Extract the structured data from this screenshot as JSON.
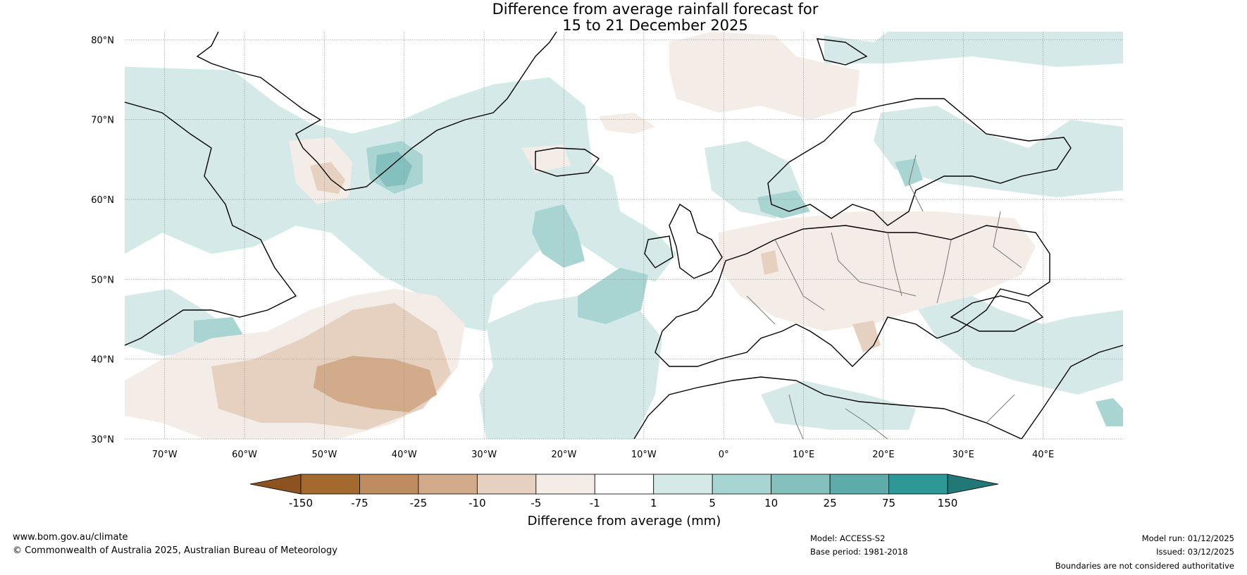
{
  "title": {
    "line1": "Difference from average rainfall forecast for",
    "line2": "15 to 21 December 2025"
  },
  "map": {
    "lat_labels": [
      "80°N",
      "70°N",
      "60°N",
      "50°N",
      "40°N",
      "30°N"
    ],
    "lon_labels": [
      "70°W",
      "60°W",
      "50°W",
      "40°W",
      "30°W",
      "20°W",
      "10°W",
      "0°",
      "10°E",
      "20°E",
      "30°E",
      "40°E"
    ],
    "extent": {
      "lon_min": -75,
      "lon_max": 50,
      "lat_min": 30,
      "lat_max": 81
    }
  },
  "colorbar": {
    "ticks": [
      "-150",
      "-75",
      "-25",
      "-10",
      "-5",
      "-1",
      "1",
      "5",
      "10",
      "25",
      "75",
      "150"
    ],
    "colors": [
      "#a4692f",
      "#bf8c60",
      "#d2ab8b",
      "#e6d0bf",
      "#f4ece6",
      "#ffffff",
      "#d4e9e8",
      "#a8d4d2",
      "#84c0be",
      "#5eacaa",
      "#2e9896"
    ],
    "low_extend_color": "#8c5320",
    "high_extend_color": "#217876",
    "label": "Difference from average (mm)"
  },
  "footer": {
    "website": "www.bom.gov.au/climate",
    "copyright": "© Commonwealth of Australia 2025, Australian Bureau of Meteorology",
    "model": "Model: ACCESS-S2",
    "base_period": "Base period: 1981-2018",
    "model_run": "Model run: 01/12/2025",
    "issued": "Issued: 03/12/2025",
    "disclaimer": "Boundaries are not considered authoritative"
  }
}
